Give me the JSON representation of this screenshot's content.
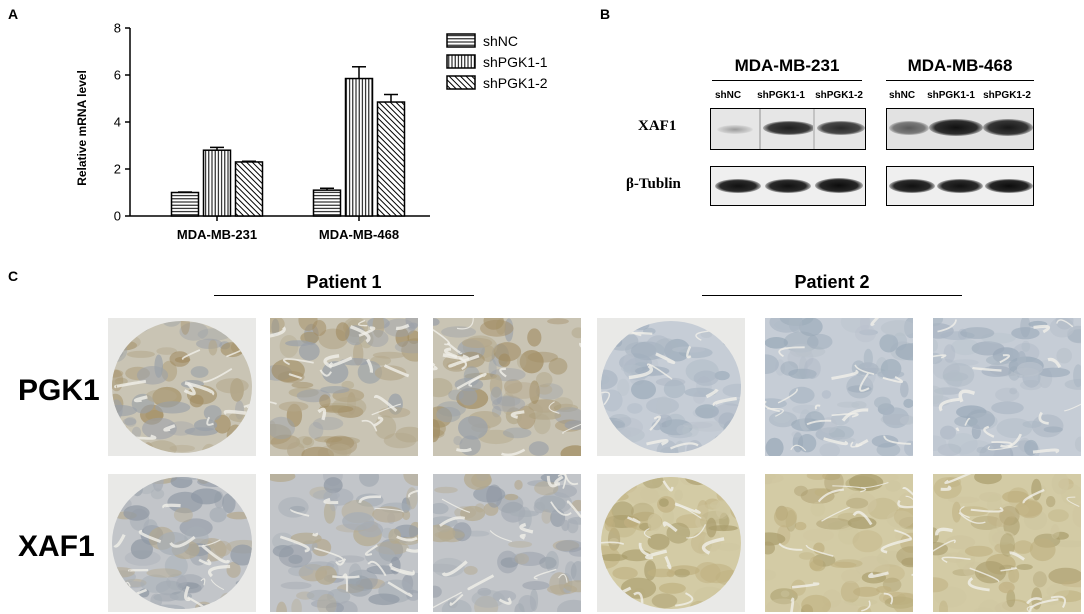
{
  "panels": {
    "a": "A",
    "b": "B",
    "c": "C"
  },
  "chart_data": {
    "type": "bar",
    "categories": [
      "MDA-MB-231",
      "MDA-MB-468"
    ],
    "series": [
      {
        "name": "shNC",
        "values": [
          1.0,
          1.1
        ],
        "errors": [
          0.02,
          0.08
        ],
        "pattern": "horizontal"
      },
      {
        "name": "shPGK1-1",
        "values": [
          2.8,
          5.85
        ],
        "errors": [
          0.12,
          0.5
        ],
        "pattern": "vertical"
      },
      {
        "name": "shPGK1-2",
        "values": [
          2.3,
          4.85
        ],
        "errors": [
          0.03,
          0.32
        ],
        "pattern": "diagonal"
      }
    ],
    "ylabel": "Relative mRNA level",
    "ylim": [
      0,
      8
    ],
    "yticks": [
      "0",
      "2",
      "4",
      "6",
      "8"
    ],
    "legend_position": "top-right",
    "grid": false
  },
  "blot": {
    "cell_lines": [
      "MDA-MB-231",
      "MDA-MB-468"
    ],
    "lanes": [
      "shNC",
      "shPGK1-1",
      "shPGK1-2"
    ],
    "rows": [
      "XAF1",
      "β-Tublin"
    ]
  },
  "ihc": {
    "patients": [
      "Patient 1",
      "Patient 2"
    ],
    "markers": [
      "PGK1",
      "XAF1"
    ]
  }
}
